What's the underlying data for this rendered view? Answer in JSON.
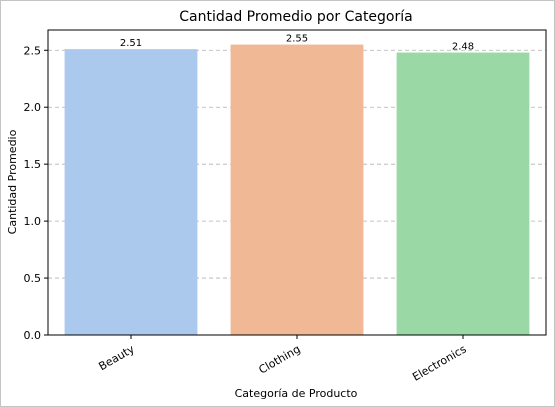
{
  "chart_data": {
    "type": "bar",
    "title": "Cantidad Promedio por Categoría",
    "xlabel": "Categoría de Producto",
    "ylabel": "Cantidad Promedio",
    "categories": [
      "Beauty",
      "Clothing",
      "Electronics"
    ],
    "values": [
      2.51,
      2.55,
      2.48
    ],
    "data_labels": [
      "2.51",
      "2.55",
      "2.48"
    ],
    "colors": [
      "#abc9ed",
      "#f0b894",
      "#9ad9a6"
    ],
    "ylim": [
      0,
      2.678
    ],
    "yticks": [
      0,
      0.5,
      1.0,
      1.5,
      2.0,
      2.5
    ],
    "ytick_labels": [
      "0.0",
      "0.5",
      "1.0",
      "1.5",
      "2.0",
      "2.5"
    ],
    "grid": "y-dashed",
    "legend": "none"
  }
}
